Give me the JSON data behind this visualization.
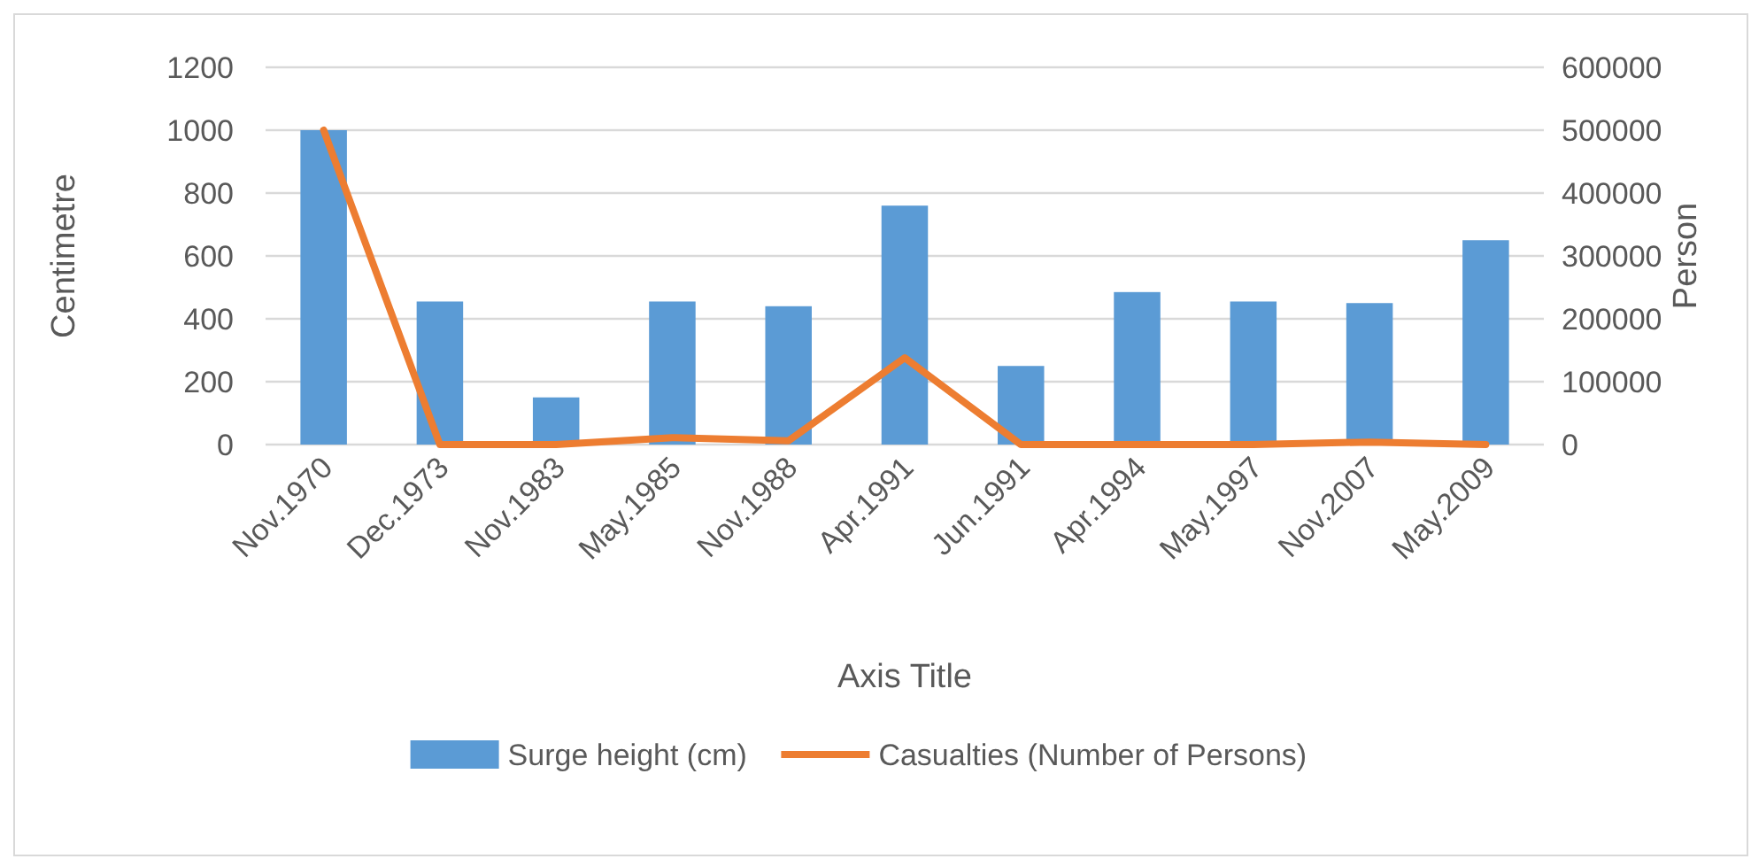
{
  "chart_data": {
    "type": "bar",
    "xlabel": "Axis Title",
    "ylabel": "Centimetre",
    "y2label": "Person",
    "categories": [
      "Nov.1970",
      "Dec.1973",
      "Nov.1983",
      "May.1985",
      "Nov.1988",
      "Apr.1991",
      "Jun.1991",
      "Apr.1994",
      "May.1997",
      "Nov.2007",
      "May.2009"
    ],
    "series": [
      {
        "name": "Surge height (cm)",
        "color": "#5b9bd5",
        "values": [
          1000,
          455,
          150,
          455,
          440,
          760,
          250,
          485,
          455,
          450,
          650
        ]
      },
      {
        "name": "Casualties (Number of Persons)",
        "type": "line",
        "axis": "y2",
        "color": "#ed7d31",
        "values": [
          500000,
          0,
          0,
          11000,
          6000,
          138000,
          0,
          0,
          0,
          4000,
          0
        ]
      }
    ],
    "ylim": [
      0,
      1200
    ],
    "yticks": [
      0,
      200,
      400,
      600,
      800,
      1000,
      1200
    ],
    "y2lim": [
      0,
      600000
    ],
    "y2ticks": [
      0,
      100000,
      200000,
      300000,
      400000,
      500000,
      600000
    ],
    "grid": "y",
    "legend": "bottom"
  }
}
